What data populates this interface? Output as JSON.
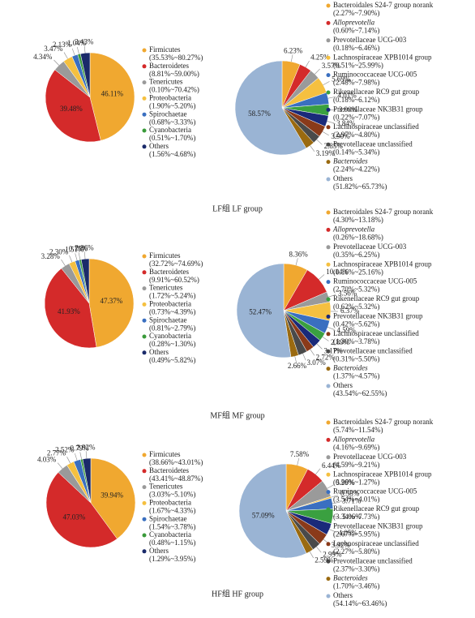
{
  "chart_data": [
    {
      "type": "pie",
      "categories": [
        "Firmicutes",
        "Bacteroidetes",
        "Tenericutes",
        "Proteobacteria",
        "Spirochaetae",
        "Cyanobacteria",
        "Others"
      ],
      "values": [
        46.11,
        39.48,
        4.34,
        3.47,
        2.13,
        1.04,
        3.43
      ],
      "value_labels": [
        "46.11%",
        "39.48%",
        "4.34%",
        "3.47%",
        "2.13%",
        "1.04%",
        "3.43%"
      ],
      "ranges": [
        "(35.53%~80.27%)",
        "(8.81%~59.00%)",
        "(0.10%~70.42%)",
        "(1.90%~5.20%)",
        "(0.68%~3.33%)",
        "(0.51%~1.70%)",
        "(1.56%~4.68%)"
      ],
      "colors": [
        "#f0a830",
        "#d42a2a",
        "#9a9a9a",
        "#f5c040",
        "#3a6fc0",
        "#3a9a3a",
        "#1a2a6a"
      ]
    },
    {
      "type": "pie",
      "categories": [
        "Bacteroidales S24-7 group norank",
        "Alloprevotella",
        "Prevotellaceae UCG-003",
        "Lachnospiraceae XPB1014 group",
        "Ruminococcaceae UCG-005",
        "Rikenellaceae RC9 gut group",
        "Prevotellaceae NK3B31 group",
        "Lachnospiraceae unclassified",
        "Prevotellaceae unclassified",
        "Bacteroides",
        "Others"
      ],
      "values": [
        6.23,
        4.25,
        3.57,
        5.69,
        4.01,
        3.9,
        3.84,
        3.9,
        2.85,
        3.19,
        58.57
      ],
      "value_labels": [
        "6.23%",
        "4.25%",
        "3.57%",
        "5.69%",
        "4.01%",
        "3.90%",
        "3.84%",
        "3.90%",
        "2.85%",
        "3.19%",
        "58.57%"
      ],
      "ranges": [
        "(2.27%~7.90%)",
        "(0.60%~7.14%)",
        "(0.18%~6.46%)",
        "(0.51%~25.99%)",
        "(2.48%~7.98%)",
        "(0.18%~6.12%)",
        "(0.22%~7.07%)",
        "(2.97%~4.80%)",
        "(0.14%~5.34%)",
        "(2.24%~4.22%)",
        "(51.82%~65.73%)"
      ],
      "colors": [
        "#f0a830",
        "#d42a2a",
        "#9a9a9a",
        "#f5c040",
        "#3a6fc0",
        "#3aa040",
        "#1a2a7a",
        "#8a3a1a",
        "#4a4a4a",
        "#9a6a10",
        "#9ab4d4"
      ],
      "italic": [
        false,
        true,
        false,
        false,
        false,
        false,
        false,
        false,
        false,
        true,
        false
      ]
    },
    {
      "type": "pie",
      "categories": [
        "Firmicutes",
        "Bacteroidetes",
        "Tenericutes",
        "Proteobacteria",
        "Spirochaetae",
        "Cyanobacteria",
        "Others"
      ],
      "values": [
        47.37,
        41.93,
        3.28,
        2.3,
        1.51,
        0.75,
        2.86
      ],
      "value_labels": [
        "47.37%",
        "41.93%",
        "3.28%",
        "2.30%",
        "1.51%",
        "0.75%",
        "2.86%"
      ],
      "ranges": [
        "(32.72%~74.69%)",
        "(9.91%~60.52%)",
        "(1.72%~5.24%)",
        "(0.73%~4.39%)",
        "(0.81%~2.79%)",
        "(0.28%~1.30%)",
        "(0.49%~5.82%)"
      ],
      "colors": [
        "#f0a830",
        "#d42a2a",
        "#9a9a9a",
        "#f5c040",
        "#3a6fc0",
        "#3a9a3a",
        "#1a2a6a"
      ]
    },
    {
      "type": "pie",
      "categories": [
        "Bacteroidales S24-7 group norank",
        "Alloprevotella",
        "Prevotellaceae UCG-003",
        "Lachnospiraceae XPB1014 group",
        "Ruminococcaceae UCG-005",
        "Rikenellaceae RC9 gut group",
        "Prevotellaceae NK3B31 group",
        "Lachnospiraceae unclassified",
        "Prevotellaceae unclassified",
        "Bacteroides",
        "Others"
      ],
      "values": [
        8.36,
        10.14,
        3.56,
        6.37,
        4.59,
        2.89,
        3.17,
        2.72,
        3.07,
        2.66,
        52.47
      ],
      "value_labels": [
        "8.36%",
        "10.14%",
        "3.56%",
        "6.37%",
        "4.59%",
        "2.89%",
        "3.17%",
        "2.72%",
        "3.07%",
        "2.66%",
        "52.47%"
      ],
      "ranges": [
        "(4.30%~13.18%)",
        "(0.26%~18.68%)",
        "(0.35%~6.25%)",
        "(0.16%~25.16%)",
        "(2.70%~5.32%)",
        "(0.62%~5.32%)",
        "(0.42%~5.62%)",
        "(1.30%~3.78%)",
        "(0.31%~5.50%)",
        "(1.37%~4.57%)",
        "(43.54%~62.55%)"
      ],
      "colors": [
        "#f0a830",
        "#d42a2a",
        "#9a9a9a",
        "#f5c040",
        "#3a6fc0",
        "#3aa040",
        "#1a2a7a",
        "#8a3a1a",
        "#4a4a4a",
        "#9a6a10",
        "#9ab4d4"
      ],
      "italic": [
        false,
        true,
        false,
        false,
        false,
        false,
        false,
        false,
        false,
        true,
        false
      ]
    },
    {
      "type": "pie",
      "categories": [
        "Firmicutes",
        "Bacteroidetes",
        "Tenericutes",
        "Proteobacteria",
        "Spirochaetae",
        "Cyanobacteria",
        "Others"
      ],
      "values": [
        39.94,
        47.03,
        4.03,
        2.77,
        2.52,
        0.79,
        2.92
      ],
      "value_labels": [
        "39.94%",
        "47.03%",
        "4.03%",
        "2.77%",
        "2.52%",
        "0.79%",
        "2.92%"
      ],
      "ranges": [
        "(38.66%~43.01%)",
        "(43.41%~48.87%)",
        "(3.03%~5.10%)",
        "(1.67%~4.33%)",
        "(1.54%~3.78%)",
        "(0.48%~1.15%)",
        "(1.29%~3.95%)"
      ],
      "colors": [
        "#f0a830",
        "#d42a2a",
        "#9a9a9a",
        "#f5c040",
        "#3a6fc0",
        "#3a9a3a",
        "#1a2a6a"
      ]
    },
    {
      "type": "pie",
      "categories": [
        "Bacteroidales S24-7 group norank",
        "Alloprevotella",
        "Prevotellaceae UCG-003",
        "Lachnospiraceae XPB1014 group",
        "Ruminococcaceae UCG-005",
        "Rikenellaceae RC9 gut group",
        "Prevotellaceae NK3B31 group",
        "Lachnospiraceae unclassified",
        "Prevotellaceae unclassified",
        "Bacteroides",
        "Others"
      ],
      "values": [
        7.58,
        6.44,
        5.99,
        0.58,
        3.71,
        5.06,
        4.05,
        3.92,
        2.99,
        2.59,
        57.09
      ],
      "value_labels": [
        "7.58%",
        "6.44%",
        "5.99%",
        "0.58%",
        "3.71%",
        "5.06%",
        "4.05%",
        "3.92%",
        "2.99%",
        "2.59%",
        "57.09%"
      ],
      "ranges": [
        "(5.74%~11.54%)",
        "(4.16%~9.69%)",
        "(4.59%~9.21%)",
        "(0.26%~1.27%)",
        "(3.54%~4.01%)",
        "(3.34%~7.73%)",
        "(2.67%~5.95%)",
        "(2.27%~5.80%)",
        "(2.37%~3.30%)",
        "(1.70%~3.46%)",
        "(54.14%~63.46%)"
      ],
      "colors": [
        "#f0a830",
        "#d42a2a",
        "#9a9a9a",
        "#f5c040",
        "#3a6fc0",
        "#3aa040",
        "#1a2a7a",
        "#8a3a1a",
        "#4a4a4a",
        "#9a6a10",
        "#9ab4d4"
      ],
      "italic": [
        false,
        true,
        false,
        false,
        false,
        false,
        false,
        false,
        false,
        true,
        false
      ]
    }
  ],
  "captions": [
    "LF组 LF group",
    "MF组 MF group",
    "HF组 HF group"
  ]
}
